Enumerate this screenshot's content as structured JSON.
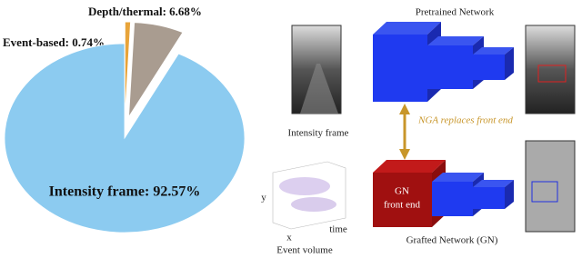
{
  "chart_data": {
    "type": "pie",
    "values": [
      0.74,
      6.68,
      92.57
    ],
    "value_labels": [
      "Event-based: 0.74%",
      "Depth/thermal: 6.68%",
      "Intensity frame: 92.57%"
    ],
    "colors": [
      "#e8a43a",
      "#a99c90",
      "#8ccbf0"
    ],
    "explode": [
      true,
      true,
      false
    ]
  },
  "diagram": {
    "intensity_label": "Intensity frame",
    "pretrained_label": "Pretrained Network",
    "arrow_label": "NGA replaces front end",
    "front_end_label": [
      "GN",
      "front end"
    ],
    "grafted_label": "Grafted Network (GN)",
    "event_volume_label": "Event volume",
    "axis_x": "x",
    "axis_y": "y",
    "axis_time": "time"
  }
}
